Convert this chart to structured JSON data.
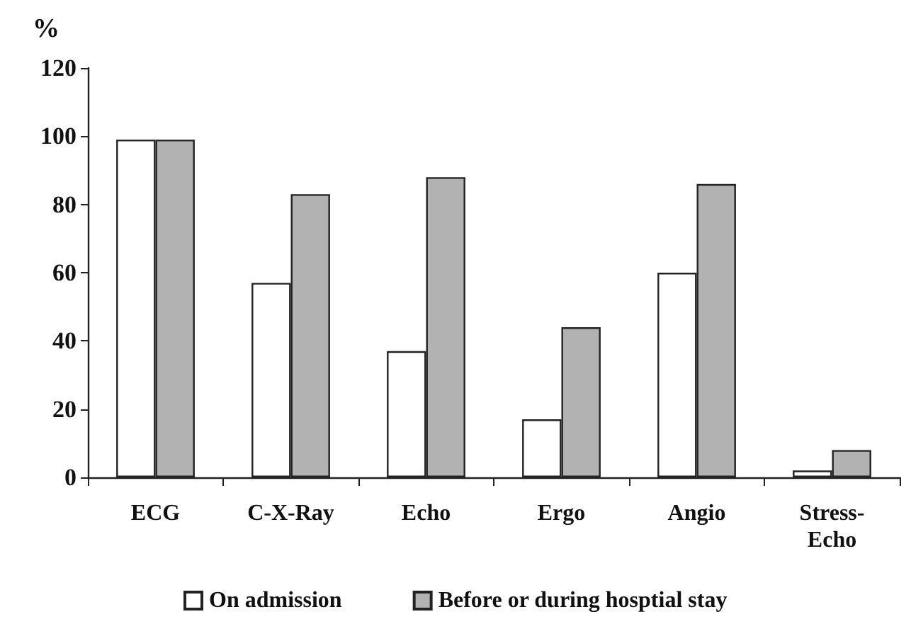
{
  "chart_data": {
    "type": "bar",
    "ylabel": "%",
    "categories": [
      "ECG",
      "C-X-Ray",
      "Echo",
      "Ergo",
      "Angio",
      "Stress-\nEcho"
    ],
    "series": [
      {
        "name": "On admission",
        "color": "#ffffff",
        "values": [
          99,
          57,
          37,
          17,
          60,
          2
        ]
      },
      {
        "name": "Before or during hosptial stay",
        "color": "#b2b2b2",
        "values": [
          99,
          83,
          88,
          44,
          86,
          8
        ]
      }
    ],
    "ylim": [
      0,
      120
    ],
    "yticks": [
      0,
      20,
      40,
      60,
      80,
      100,
      120
    ],
    "grid": false,
    "legend": "bottom"
  }
}
